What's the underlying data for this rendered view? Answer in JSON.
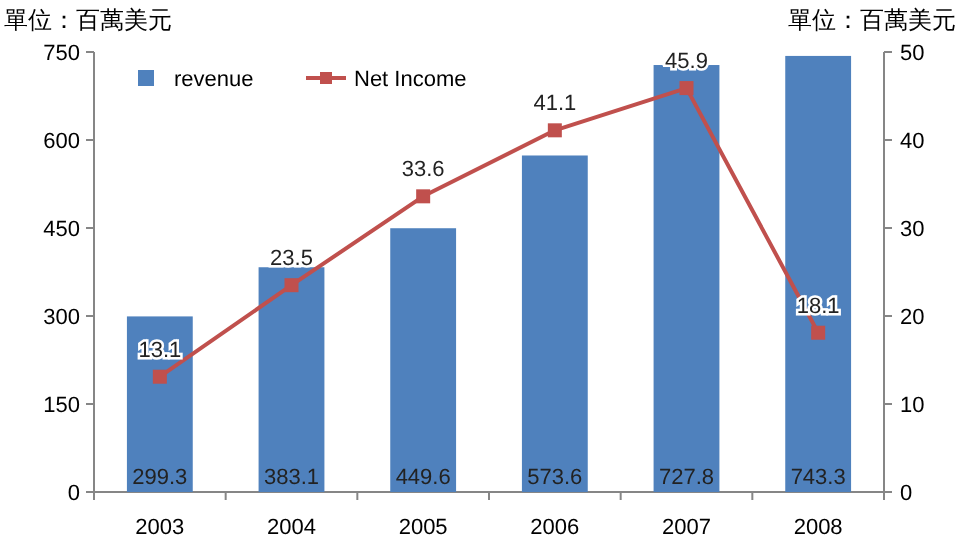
{
  "chart_data": {
    "type": "bar",
    "ylabel": "單位：百萬美元",
    "y2label": "單位：百萬美元",
    "categories": [
      "2003",
      "2004",
      "2005",
      "2006",
      "2007",
      "2008"
    ],
    "series": [
      {
        "name": "revenue",
        "color": "#4f81bd",
        "values": [
          299.3,
          383.1,
          449.6,
          573.6,
          727.8,
          743.3
        ]
      },
      {
        "name": "Net Income",
        "type": "line",
        "axis": "y2",
        "color": "#c0504d",
        "marker": "square",
        "values": [
          13.1,
          23.5,
          33.6,
          41.1,
          45.9,
          18.1
        ]
      }
    ],
    "ylim": [
      0,
      750
    ],
    "yticks": [
      0,
      150,
      300,
      450,
      600,
      750
    ],
    "y2lim": [
      0,
      50
    ],
    "y2ticks": [
      0,
      10,
      20,
      30,
      40,
      50
    ],
    "data_labels": true,
    "grid": false,
    "legend": "top left"
  }
}
